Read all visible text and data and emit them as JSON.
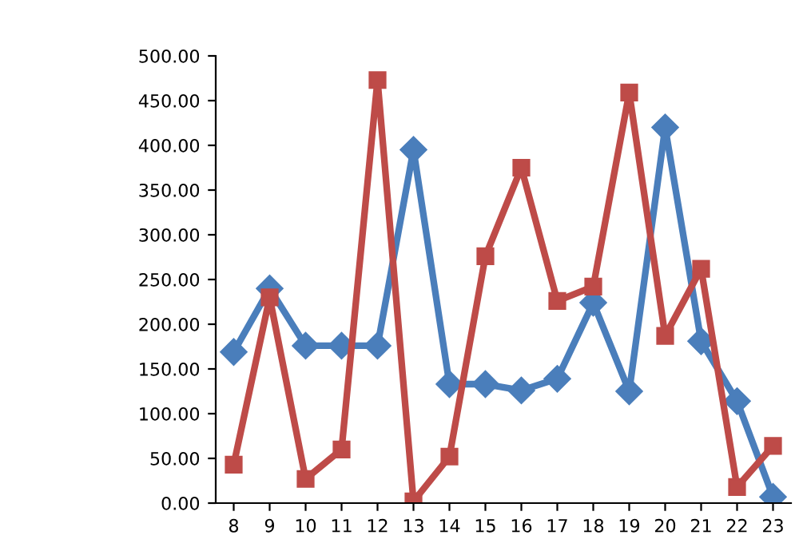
{
  "chart_data": {
    "type": "line",
    "categories": [
      "8",
      "9",
      "10",
      "11",
      "12",
      "13",
      "14",
      "15",
      "16",
      "17",
      "18",
      "19",
      "20",
      "21",
      "22",
      "23"
    ],
    "series": [
      {
        "color": "#4a7ebb",
        "marker": "diamond",
        "values": [
          169,
          240,
          176,
          176,
          176,
          395,
          133,
          133,
          126,
          139,
          224,
          125,
          420,
          181,
          114,
          7
        ]
      },
      {
        "color": "#be4b48",
        "marker": "square",
        "values": [
          43,
          230,
          27,
          60,
          473,
          2,
          52,
          276,
          375,
          226,
          242,
          459,
          187,
          262,
          18,
          64
        ]
      }
    ],
    "ylim": [
      0,
      500
    ],
    "yticks": [
      {
        "value": 0,
        "label": "0.00"
      },
      {
        "value": 50,
        "label": "50.00"
      },
      {
        "value": 100,
        "label": "100.00"
      },
      {
        "value": 150,
        "label": "150.00"
      },
      {
        "value": 200,
        "label": "200.00"
      },
      {
        "value": 250,
        "label": "250.00"
      },
      {
        "value": 300,
        "label": "300.00"
      },
      {
        "value": 350,
        "label": "350.00"
      },
      {
        "value": 400,
        "label": "400.00"
      },
      {
        "value": 450,
        "label": "450.00"
      },
      {
        "value": 500,
        "label": "500.00"
      }
    ],
    "grid": false,
    "legend": false,
    "line_style": "solid"
  }
}
